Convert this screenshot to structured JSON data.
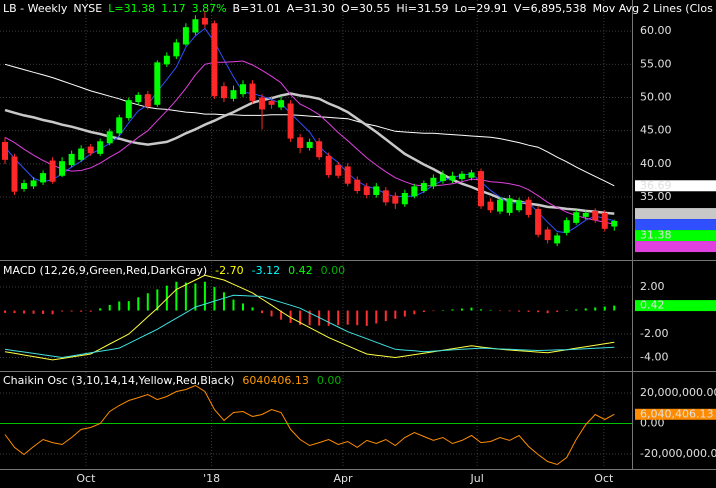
{
  "chart_data": [
    {
      "type": "candlestick",
      "title_segments": [
        {
          "text": "LB - Weekly",
          "color": "#ffffff"
        },
        {
          "text": "NYSE",
          "color": "#ffffff"
        },
        {
          "text": "L=31.38",
          "color": "#00ff00"
        },
        {
          "text": "1.17",
          "color": "#00ff00"
        },
        {
          "text": "3.87%",
          "color": "#00ff00"
        },
        {
          "text": "B=31.01",
          "color": "#ffffff"
        },
        {
          "text": "A=31.30",
          "color": "#ffffff"
        },
        {
          "text": "O=30.55",
          "color": "#ffffff"
        },
        {
          "text": "Hi=31.59",
          "color": "#ffffff"
        },
        {
          "text": "Lo=29.91",
          "color": "#ffffff"
        },
        {
          "text": "V=6,895,538",
          "color": "#ffffff"
        },
        {
          "text": "Mov Avg 2 Lines (Clos",
          "color": "#ffffff"
        }
      ],
      "open": [
        43.3,
        41.1,
        36.2,
        36.6,
        37.2,
        40.5,
        38.2,
        39.8,
        40.6,
        42.6,
        41.5,
        43.1,
        44.6,
        46.9,
        49.3,
        50.5,
        48.9,
        55.0,
        56.2,
        58.0,
        59.8,
        62.0,
        61.2,
        51.7,
        49.8,
        50.5,
        52.1,
        50.0,
        49.5,
        48.5,
        49.1,
        44.0,
        42.4,
        43.4,
        41.2,
        39.8,
        39.6,
        37.6,
        36.6,
        35.3,
        36.0,
        35.2,
        33.9,
        35.1,
        35.9,
        36.6,
        37.4,
        37.5,
        37.7,
        37.9,
        38.9,
        34.3,
        32.8,
        32.6,
        33.0,
        34.6,
        33.2,
        30.1,
        28.0,
        29.6,
        31.1,
        32.0,
        32.9,
        32.6,
        30.55
      ],
      "high": [
        44.0,
        41.5,
        37.6,
        38.0,
        39.0,
        41.0,
        41.0,
        42.0,
        42.8,
        43.0,
        43.8,
        45.3,
        47.4,
        50.0,
        50.8,
        51.0,
        55.6,
        56.8,
        58.8,
        61.2,
        62.4,
        63.0,
        61.6,
        52.3,
        51.8,
        52.6,
        52.6,
        50.5,
        50.2,
        50.2,
        49.6,
        44.5,
        43.8,
        43.9,
        41.7,
        40.3,
        40.1,
        38.1,
        37.1,
        37.1,
        36.5,
        35.7,
        36.1,
        37.0,
        37.5,
        38.4,
        39.0,
        38.8,
        38.9,
        39.1,
        39.3,
        34.8,
        35.0,
        35.3,
        34.9,
        35.0,
        33.6,
        30.5,
        29.6,
        31.9,
        33.1,
        33.0,
        33.3,
        33.0,
        31.59
      ],
      "low": [
        40.0,
        35.3,
        35.8,
        36.2,
        36.8,
        37.0,
        38.0,
        39.5,
        40.3,
        41.2,
        41.2,
        42.8,
        44.2,
        46.5,
        48.9,
        48.2,
        48.6,
        54.6,
        55.8,
        57.8,
        59.4,
        60.5,
        49.8,
        49.3,
        49.4,
        50.1,
        49.1,
        45.2,
        48.3,
        48.1,
        43.3,
        41.6,
        42.0,
        40.6,
        37.9,
        37.8,
        36.6,
        35.5,
        34.8,
        34.9,
        33.7,
        33.2,
        33.5,
        34.8,
        35.6,
        36.2,
        37.0,
        37.1,
        37.4,
        37.5,
        33.2,
        32.6,
        32.4,
        32.2,
        32.7,
        31.9,
        28.9,
        28.0,
        27.6,
        29.2,
        30.8,
        31.6,
        31.1,
        29.8,
        29.91
      ],
      "close": [
        40.6,
        35.8,
        37.1,
        37.5,
        38.6,
        37.3,
        40.4,
        41.5,
        42.3,
        41.6,
        43.4,
        44.9,
        47.0,
        49.6,
        50.4,
        48.6,
        55.3,
        56.3,
        58.3,
        60.6,
        61.8,
        61.0,
        50.2,
        49.9,
        51.1,
        52.0,
        49.5,
        48.2,
        48.9,
        49.6,
        43.8,
        42.4,
        43.3,
        41.0,
        38.3,
        38.2,
        37.0,
        35.9,
        35.3,
        36.6,
        34.2,
        34.0,
        35.6,
        36.6,
        37.1,
        37.9,
        38.4,
        38.2,
        38.5,
        38.7,
        33.6,
        33.0,
        34.6,
        34.8,
        34.5,
        32.3,
        29.3,
        28.5,
        29.2,
        31.5,
        32.7,
        32.6,
        31.5,
        30.2,
        31.38
      ],
      "close_label": "31.38",
      "up_color": "#00ff00",
      "down_color": "#ff2828",
      "series": [
        {
          "color": "#ffffff",
          "width": 1,
          "last_label": "36.69",
          "values": [
            55.0,
            54.6,
            54.2,
            53.8,
            53.4,
            53.0,
            52.5,
            52.0,
            51.5,
            51.0,
            50.6,
            50.2,
            49.8,
            49.3,
            48.9,
            48.5,
            48.3,
            48.2,
            48.0,
            47.8,
            47.7,
            47.5,
            47.5,
            47.4,
            47.4,
            47.3,
            47.3,
            47.3,
            47.4,
            47.4,
            47.4,
            47.3,
            47.2,
            47.1,
            47.0,
            46.9,
            46.8,
            46.4,
            46.0,
            45.7,
            45.3,
            44.9,
            44.8,
            44.7,
            44.6,
            44.6,
            44.5,
            44.4,
            44.3,
            44.2,
            44.1,
            44.0,
            43.8,
            43.5,
            43.2,
            42.8,
            42.5,
            41.8,
            41.0,
            40.3,
            39.5,
            38.8,
            38.1,
            37.4,
            36.69
          ]
        },
        {
          "color": "#c8c8c8",
          "width": 2.5,
          "values": [
            48.1,
            47.7,
            47.3,
            47.0,
            46.6,
            46.3,
            45.9,
            45.6,
            45.2,
            44.8,
            44.5,
            44.1,
            43.8,
            43.4,
            43.1,
            42.9,
            43.1,
            43.3,
            43.9,
            44.6,
            45.2,
            45.9,
            46.5,
            47.2,
            47.8,
            48.5,
            49.2,
            49.6,
            49.9,
            50.3,
            50.6,
            50.3,
            50.1,
            49.8,
            49.1,
            48.5,
            47.8,
            46.8,
            45.8,
            44.8,
            43.7,
            42.6,
            41.5,
            40.7,
            39.9,
            39.2,
            38.4,
            37.6,
            37.0,
            36.5,
            35.9,
            35.4,
            34.8,
            34.5,
            34.3,
            34.0,
            33.8,
            33.5,
            33.4,
            33.2,
            33.1,
            32.9,
            32.8,
            32.6,
            32.5
          ]
        },
        {
          "color": "#3050ff",
          "width": 1,
          "values": [
            42.5,
            40.8,
            39.3,
            37.8,
            37.3,
            37.6,
            38.5,
            39.5,
            40.4,
            41.5,
            42.2,
            43.1,
            44.2,
            46.2,
            48.0,
            48.9,
            50.9,
            52.7,
            54.6,
            57.6,
            59.3,
            60.4,
            58.4,
            55.7,
            53.1,
            50.8,
            50.6,
            50.2,
            49.7,
            49.1,
            47.6,
            46.2,
            44.8,
            42.6,
            41.3,
            40.2,
            38.6,
            37.4,
            36.6,
            36.2,
            35.5,
            35.0,
            35.1,
            35.1,
            35.8,
            36.8,
            37.5,
            37.9,
            38.3,
            38.5,
            37.3,
            36.0,
            35.0,
            34.0,
            34.2,
            34.1,
            32.7,
            31.2,
            29.8,
            29.6,
            30.5,
            31.5,
            32.1,
            31.8,
            31.4
          ]
        },
        {
          "color": "#e040e0",
          "width": 1,
          "values": [
            44.0,
            43.2,
            42.2,
            41.3,
            40.5,
            39.8,
            39.2,
            38.9,
            39.0,
            39.4,
            40.1,
            41.0,
            41.8,
            42.9,
            44.0,
            45.0,
            46.5,
            48.0,
            49.6,
            51.4,
            53.4,
            55.0,
            55.3,
            55.3,
            55.4,
            55.5,
            54.9,
            54.1,
            53.2,
            52.2,
            50.4,
            49.0,
            48.3,
            47.4,
            46.1,
            44.7,
            43.5,
            42.2,
            40.9,
            39.8,
            38.8,
            37.9,
            37.3,
            36.8,
            36.7,
            36.7,
            36.8,
            37.0,
            37.3,
            37.7,
            37.6,
            37.3,
            37.2,
            37.0,
            36.7,
            36.1,
            35.2,
            34.2,
            33.4,
            32.7,
            32.2,
            31.8,
            31.5,
            31.2,
            30.9
          ]
        }
      ],
      "ylim": [
        25.8,
        64.7
      ],
      "yticks": [
        {
          "value": 35,
          "label": "35.00"
        },
        {
          "value": 40,
          "label": "40.00"
        },
        {
          "value": 45,
          "label": "45.00"
        },
        {
          "value": 50,
          "label": "50.00"
        },
        {
          "value": 55,
          "label": "55.00"
        },
        {
          "value": 60,
          "label": "60.00"
        }
      ],
      "grid": true
    },
    {
      "type": "macd",
      "title": "MACD (12,26,9,Green,Red,DarkGray)",
      "header_values": [
        {
          "text": "-2.70",
          "color": "#ffff00"
        },
        {
          "text": "-3.12",
          "color": "#00ffff"
        },
        {
          "text": "0.42",
          "color": "#00ff00"
        },
        {
          "text": "0.00",
          "color": "#00b000"
        }
      ],
      "series": [
        {
          "color": "#ffff40",
          "width": 1,
          "values": [
            -3.5,
            -3.64,
            -3.78,
            -3.92,
            -4.06,
            -4.2,
            -4.08,
            -3.95,
            -3.83,
            -3.7,
            -3.28,
            -2.85,
            -2.43,
            -2.0,
            -1.27,
            -0.53,
            0.2,
            1.0,
            1.8,
            2.2,
            2.6,
            3.0,
            2.8,
            2.6,
            2.23,
            1.87,
            1.5,
            0.98,
            0.45,
            -0.08,
            -0.6,
            -1.03,
            -1.45,
            -1.88,
            -2.3,
            -2.65,
            -3.0,
            -3.35,
            -3.7,
            -3.8,
            -3.9,
            -4.0,
            -3.88,
            -3.75,
            -3.63,
            -3.5,
            -3.38,
            -3.25,
            -3.13,
            -3.0,
            -3.1,
            -3.2,
            -3.3,
            -3.36,
            -3.42,
            -3.48,
            -3.54,
            -3.6,
            -3.47,
            -3.33,
            -3.2,
            -3.08,
            -2.95,
            -2.83,
            -2.7
          ]
        },
        {
          "color": "#40e0e0",
          "width": 1,
          "values": [
            -3.3,
            -3.42,
            -3.53,
            -3.65,
            -3.77,
            -3.88,
            -4.0,
            -3.87,
            -3.73,
            -3.6,
            -3.47,
            -3.33,
            -3.2,
            -2.8,
            -2.4,
            -2.0,
            -1.6,
            -1.12,
            -0.65,
            -0.18,
            0.3,
            0.55,
            0.8,
            1.05,
            1.3,
            1.27,
            1.23,
            1.2,
            0.95,
            0.7,
            0.45,
            0.2,
            -0.2,
            -0.6,
            -1.0,
            -1.4,
            -1.8,
            -2.1,
            -2.4,
            -2.7,
            -3.0,
            -3.3,
            -3.37,
            -3.43,
            -3.5,
            -3.45,
            -3.4,
            -3.35,
            -3.3,
            -3.25,
            -3.2,
            -3.23,
            -3.27,
            -3.3,
            -3.33,
            -3.37,
            -3.4,
            -3.38,
            -3.35,
            -3.33,
            -3.3,
            -3.26,
            -3.21,
            -3.17,
            -3.12
          ]
        }
      ],
      "histogram": [
        -0.2,
        -0.22,
        -0.25,
        -0.27,
        -0.29,
        -0.32,
        -0.08,
        -0.08,
        -0.1,
        -0.1,
        0.19,
        0.48,
        0.77,
        0.8,
        1.13,
        1.47,
        1.8,
        2.12,
        2.45,
        2.38,
        2.3,
        2.45,
        2.0,
        1.55,
        0.93,
        0.6,
        0.27,
        -0.22,
        -0.5,
        -0.78,
        -1.05,
        -1.23,
        -1.25,
        -1.28,
        -1.3,
        -1.25,
        -1.2,
        -1.25,
        -1.3,
        -1.1,
        -0.9,
        -0.7,
        -0.51,
        -0.32,
        -0.13,
        -0.05,
        0.02,
        0.1,
        0.17,
        0.25,
        0.1,
        0.03,
        -0.03,
        -0.06,
        -0.09,
        -0.11,
        -0.14,
        -0.22,
        -0.12,
        0.0,
        0.1,
        0.18,
        0.26,
        0.34,
        0.42
      ],
      "histogram_label": "0.42",
      "up_color": "#00ff00",
      "down_color": "#ff3030",
      "ylim": [
        -5.06,
        4.13
      ],
      "yticks": [
        {
          "value": -4,
          "label": "-4.00"
        },
        {
          "value": -2,
          "label": "-2.00"
        },
        {
          "value": 2,
          "label": "2.00"
        }
      ],
      "grid": true
    },
    {
      "type": "line",
      "title": "Chaikin Osc (3,10,14,14,Yellow,Red,Black)",
      "header_values": [
        {
          "text": "6040406.13",
          "color": "#ff9900"
        },
        {
          "text": "0.00",
          "color": "#00b000"
        }
      ],
      "series": [
        {
          "color": "#ff8c00",
          "width": 1,
          "last_label": "6,040,406.13",
          "values": [
            -7200000,
            -15700000,
            -20300000,
            -15100000,
            -10500000,
            -12500000,
            -13800000,
            -9200000,
            -3900000,
            -2600000,
            0,
            7900000,
            11800000,
            15100000,
            17000000,
            19000000,
            15700000,
            17700000,
            21000000,
            22300000,
            24900000,
            21000000,
            9200000,
            2000000,
            7200000,
            7900000,
            4600000,
            5900000,
            9200000,
            7200000,
            -3900000,
            -10500000,
            -14400000,
            -12500000,
            -10500000,
            -13800000,
            -11800000,
            -15700000,
            -11100000,
            -13100000,
            -10500000,
            -14400000,
            -9200000,
            -5900000,
            -8500000,
            -11100000,
            -9200000,
            -13100000,
            -11100000,
            -7900000,
            -12500000,
            -11800000,
            -9200000,
            -11100000,
            -7900000,
            -15100000,
            -20300000,
            -24900000,
            -26900000,
            -22300000,
            -10500000,
            -700000,
            5900000,
            2600000,
            6040406.13
          ]
        }
      ],
      "zero_line_color": "#00c000",
      "ylim": [
        -29180000,
        33770000
      ],
      "yticks": [
        {
          "value": -20000000,
          "label": "-20,000,000.00"
        },
        {
          "value": 0,
          "label": "0.00"
        },
        {
          "value": 20000000,
          "label": "20,000,000.00"
        }
      ],
      "xticks": [
        {
          "value": 8.5,
          "label": "Oct"
        },
        {
          "value": 21.7,
          "label": "'18"
        },
        {
          "value": 35.5,
          "label": "Apr"
        },
        {
          "value": 49.6,
          "label": "Jul"
        },
        {
          "value": 62.9,
          "label": "Oct"
        }
      ],
      "grid": true
    }
  ]
}
